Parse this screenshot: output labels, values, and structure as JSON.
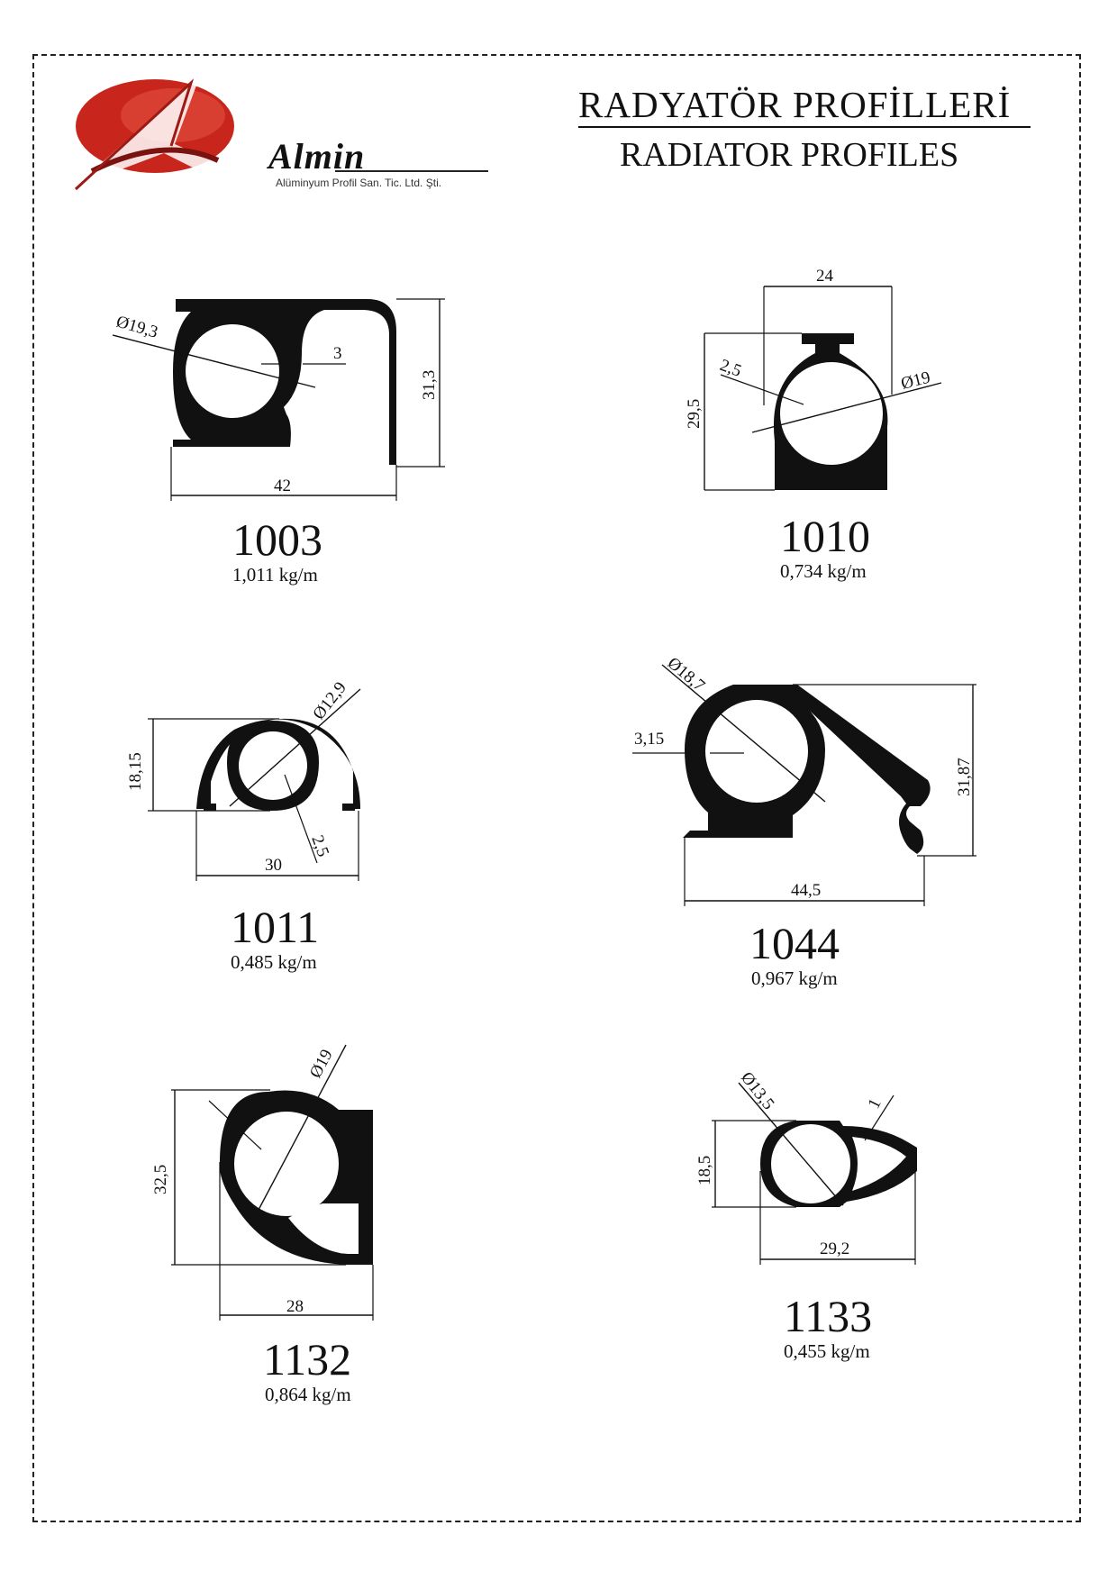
{
  "header": {
    "title_tr": "RADYATÖR PROFİLLERİ",
    "title_en": "RADIATOR PROFILES",
    "brand": {
      "name": "Almin",
      "subtitle": "Alüminyum Profil San. Tic. Ltd. Şti.",
      "accent": "#c8261c"
    }
  },
  "profiles": [
    {
      "code": "1003",
      "weight": "1,011 kg/m",
      "dims": {
        "diameter": "Ø19,3",
        "wall": "3",
        "height": "31,3",
        "width": "42"
      }
    },
    {
      "code": "1010",
      "weight": "0,734 kg/m",
      "dims": {
        "top": "24",
        "wall": "2,5",
        "diameter": "Ø19",
        "height": "29,5"
      }
    },
    {
      "code": "1011",
      "weight": "0,485 kg/m",
      "dims": {
        "diameter": "Ø12,9",
        "height": "18,15",
        "wall": "2,5",
        "width": "30"
      }
    },
    {
      "code": "1044",
      "weight": "0,967 kg/m",
      "dims": {
        "diameter": "Ø18,7",
        "wall": "3,15",
        "height": "31,87",
        "width": "44,5"
      }
    },
    {
      "code": "1132",
      "weight": "0,864 kg/m",
      "dims": {
        "diameter": "Ø19",
        "height": "32,5",
        "width": "28"
      }
    },
    {
      "code": "1133",
      "weight": "0,455 kg/m",
      "dims": {
        "diameter": "Ø13,5",
        "wall": "1",
        "height": "18,5",
        "width": "29,2"
      }
    }
  ]
}
